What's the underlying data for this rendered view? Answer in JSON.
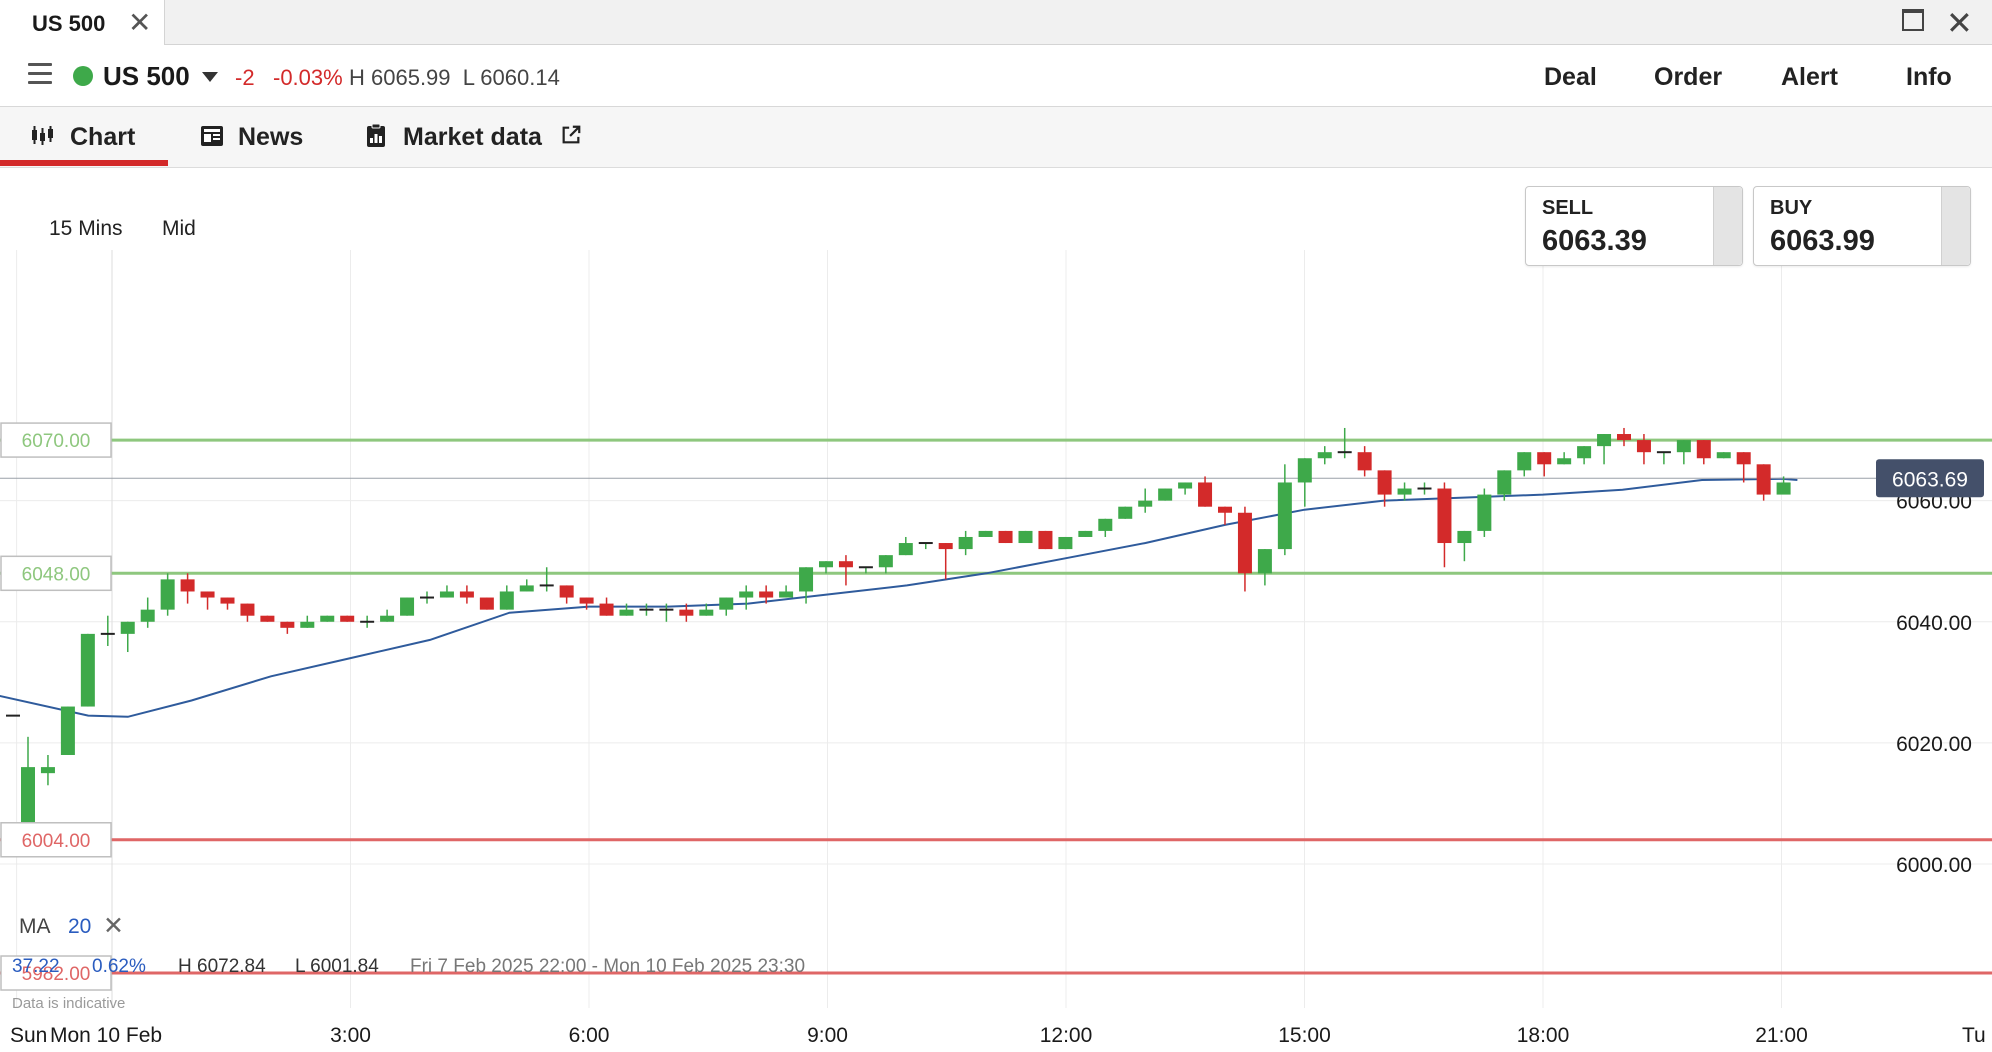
{
  "window": {
    "tab_title": "US 500"
  },
  "instrument": {
    "name": "US 500",
    "change": "-2",
    "change_pct": "-0.03%",
    "high_low": "H 6065.99  L 6060.14",
    "status_color": "#3ea94a"
  },
  "actions": [
    "Deal",
    "Order",
    "Alert",
    "Info"
  ],
  "tabs": [
    {
      "label": "Chart",
      "icon": "candlestick-icon",
      "active": true
    },
    {
      "label": "News",
      "icon": "newspaper-icon"
    },
    {
      "label": "Market data",
      "icon": "document-icon",
      "external": "external-link-icon"
    }
  ],
  "controls": {
    "interval": "15 Mins",
    "price_type": "Mid"
  },
  "quotes": {
    "sell": {
      "label": "SELL",
      "value": "6063.39"
    },
    "buy": {
      "label": "BUY",
      "value": "6063.99"
    }
  },
  "ma": {
    "label": "MA",
    "period": "20"
  },
  "stats": {
    "change": "37.22",
    "change_pct": "0.62%",
    "high": "H 6072.84",
    "low": "L 6001.84",
    "range": "Fri 7 Feb 2025 22:00 - Mon 10 Feb 2025 23:30"
  },
  "disclaimer": "Data is indicative",
  "colors": {
    "up": "#3ea94a",
    "down": "#d32a2a",
    "ma": "#2f5b9c",
    "accent": "#d32a2a"
  },
  "chart_data": {
    "type": "candlestick",
    "y_ticks": [
      "6060.00",
      "6040.00",
      "6020.00",
      "6000.00"
    ],
    "y_tick_values": [
      6060,
      6040,
      6020,
      6000
    ],
    "x_ticks": [
      "Sun",
      "Mon 10 Feb",
      "3:00",
      "6:00",
      "9:00",
      "12:00",
      "15:00",
      "18:00",
      "21:00",
      "Tu"
    ],
    "x_tick_hours": [
      -1.2,
      0,
      3,
      6,
      9,
      12,
      15,
      18,
      21,
      24
    ],
    "ylim": [
      5980,
      6078
    ],
    "grid": true,
    "current_price": {
      "label": "6063.69",
      "value": 6063.69
    },
    "price_levels": [
      {
        "label": "6070.00",
        "value": 6070,
        "color": "#8ec77e"
      },
      {
        "label": "6048.00",
        "value": 6048,
        "color": "#8ec77e"
      },
      {
        "label": "6004.00",
        "value": 6004,
        "color": "#df6666"
      },
      {
        "label": "5982.00",
        "value": 5982,
        "color": "#df6666"
      }
    ],
    "series": [
      {
        "name": "US 500",
        "candles_ohlc": [
          [
            6004,
            6016,
            6001.8,
            6021
          ],
          [
            6015,
            6016,
            6013,
            6018
          ],
          [
            6018,
            6026,
            6018,
            6026
          ],
          [
            6026,
            6038,
            6026,
            6038
          ],
          [
            6038,
            6038,
            6036,
            6041
          ],
          [
            6038,
            6040,
            6035,
            6040
          ],
          [
            6040,
            6042,
            6039,
            6044
          ],
          [
            6042,
            6047,
            6041,
            6048
          ],
          [
            6047,
            6045,
            6043,
            6048
          ],
          [
            6045,
            6044,
            6042,
            6045
          ],
          [
            6044,
            6043,
            6042,
            6044
          ],
          [
            6043,
            6041,
            6040,
            6043
          ],
          [
            6041,
            6040,
            6040,
            6041
          ],
          [
            6040,
            6039,
            6038,
            6040
          ],
          [
            6039,
            6040,
            6039,
            6041
          ],
          [
            6040,
            6041,
            6040,
            6041
          ],
          [
            6041,
            6040,
            6040,
            6041
          ],
          [
            6040,
            6040,
            6039,
            6041
          ],
          [
            6040,
            6041,
            6040,
            6042
          ],
          [
            6041,
            6044,
            6041,
            6044
          ],
          [
            6044,
            6044,
            6043,
            6045
          ],
          [
            6044,
            6045,
            6044,
            6046
          ],
          [
            6045,
            6044,
            6043,
            6046
          ],
          [
            6044,
            6042,
            6042,
            6044
          ],
          [
            6042,
            6045,
            6042,
            6046
          ],
          [
            6045,
            6046,
            6045,
            6047
          ],
          [
            6046,
            6046,
            6045,
            6049
          ],
          [
            6046,
            6044,
            6043,
            6046
          ],
          [
            6044,
            6043,
            6042,
            6044
          ],
          [
            6043,
            6041,
            6041,
            6044
          ],
          [
            6041,
            6042,
            6041,
            6043
          ],
          [
            6042,
            6042,
            6041,
            6043
          ],
          [
            6042,
            6042,
            6040,
            6043
          ],
          [
            6042,
            6041,
            6040,
            6043
          ],
          [
            6041,
            6042,
            6041,
            6043
          ],
          [
            6042,
            6044,
            6041,
            6044
          ],
          [
            6044,
            6045,
            6042,
            6046
          ],
          [
            6045,
            6044,
            6043,
            6046
          ],
          [
            6044,
            6045,
            6044,
            6046
          ],
          [
            6045,
            6049,
            6043,
            6049
          ],
          [
            6049,
            6050,
            6048,
            6050
          ],
          [
            6050,
            6049,
            6046,
            6051
          ],
          [
            6049,
            6049,
            6048,
            6049
          ],
          [
            6049,
            6051,
            6048,
            6051
          ],
          [
            6051,
            6053,
            6051,
            6054
          ],
          [
            6053,
            6053,
            6052,
            6053
          ],
          [
            6053,
            6052,
            6047,
            6053
          ],
          [
            6052,
            6054,
            6051,
            6055
          ],
          [
            6054,
            6055,
            6054,
            6055
          ],
          [
            6055,
            6053,
            6053,
            6055
          ],
          [
            6053,
            6055,
            6054,
            6055
          ],
          [
            6055,
            6052,
            6052,
            6055
          ],
          [
            6052,
            6054,
            6052,
            6054
          ],
          [
            6054,
            6055,
            6054,
            6055
          ],
          [
            6055,
            6057,
            6054,
            6057
          ],
          [
            6057,
            6059,
            6057,
            6059
          ],
          [
            6059,
            6060,
            6058,
            6062
          ],
          [
            6060,
            6062,
            6060,
            6062
          ],
          [
            6062,
            6063,
            6061,
            6063
          ],
          [
            6063,
            6059,
            6059,
            6064
          ],
          [
            6059,
            6058,
            6056,
            6059
          ],
          [
            6058,
            6048,
            6045,
            6059
          ],
          [
            6048,
            6052,
            6046,
            6052
          ],
          [
            6052,
            6063,
            6051,
            6066
          ],
          [
            6063,
            6067,
            6059,
            6067
          ],
          [
            6067,
            6068,
            6066,
            6069
          ],
          [
            6068,
            6068,
            6067,
            6072
          ],
          [
            6068,
            6065,
            6064,
            6069
          ],
          [
            6065,
            6061,
            6059,
            6065
          ],
          [
            6061,
            6062,
            6060,
            6063
          ],
          [
            6062,
            6062,
            6061,
            6063
          ],
          [
            6062,
            6053,
            6049,
            6063
          ],
          [
            6053,
            6055,
            6050,
            6055
          ],
          [
            6055,
            6061,
            6054,
            6062
          ],
          [
            6061,
            6065,
            6060,
            6065
          ],
          [
            6065,
            6068,
            6064,
            6068
          ],
          [
            6068,
            6066,
            6064,
            6068
          ],
          [
            6066,
            6067,
            6066,
            6068
          ],
          [
            6067,
            6069,
            6066,
            6069
          ],
          [
            6069,
            6071,
            6066,
            6071
          ],
          [
            6071,
            6070,
            6069,
            6072
          ],
          [
            6070,
            6068,
            6066,
            6071
          ],
          [
            6068,
            6068,
            6066,
            6068
          ],
          [
            6068,
            6070,
            6066,
            6070
          ],
          [
            6070,
            6067,
            6066,
            6070
          ],
          [
            6067,
            6068,
            6067,
            6068
          ],
          [
            6068,
            6066,
            6063,
            6068
          ],
          [
            6066,
            6061,
            6060,
            6066
          ],
          [
            6061,
            6063,
            6062,
            6064
          ]
        ],
        "color_up": "#3ea94a",
        "color_down": "#d32a2a"
      },
      {
        "name": "MA 20",
        "x_hours": [
          -1.5,
          -0.3,
          0.2,
          1.0,
          2.0,
          3.0,
          4.0,
          5.0,
          6.0,
          7.0,
          8.0,
          9.0,
          10.0,
          11.0,
          12.0,
          13.0,
          14.0,
          15.0,
          16.0,
          17.0,
          18.0,
          19.0,
          20.0,
          21.0,
          21.2
        ],
        "values": [
          6028,
          6024.5,
          6024.3,
          6027,
          6031,
          6034,
          6037,
          6041.5,
          6042.5,
          6042.5,
          6043,
          6044.5,
          6046,
          6048,
          6050.5,
          6053,
          6056,
          6058.5,
          6060,
          6060.5,
          6061,
          6061.8,
          6063.4,
          6063.6,
          6063.4
        ],
        "color": "#2f5b9c"
      }
    ]
  }
}
